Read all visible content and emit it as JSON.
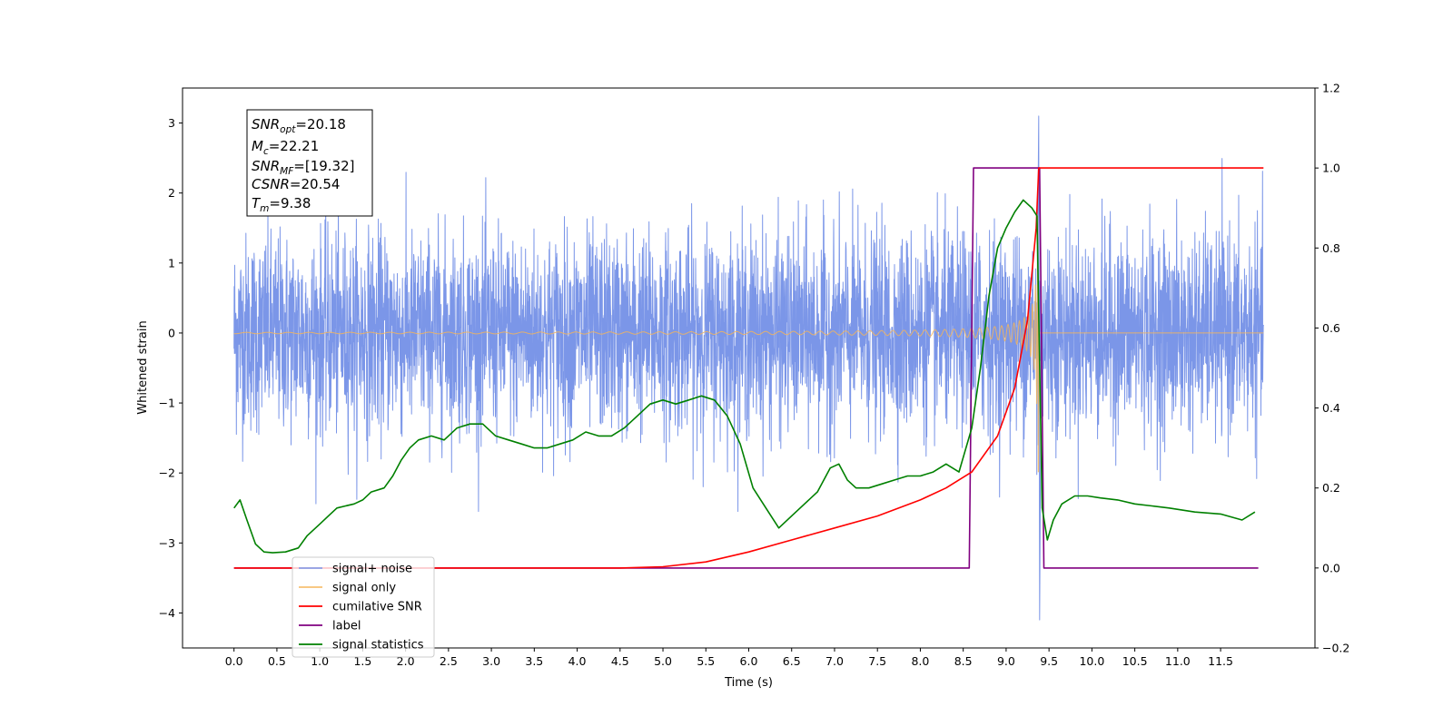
{
  "chart_data": {
    "type": "line",
    "xlabel": "Time (s)",
    "ylabel": "Whitened strain",
    "xlim": [
      -0.6,
      12.6
    ],
    "ylim": [
      -4.5,
      3.5
    ],
    "y2lim": [
      -0.2,
      1.2
    ],
    "x_ticks": [
      "0.0",
      "0.5",
      "1.0",
      "1.5",
      "2.0",
      "2.5",
      "3.0",
      "3.5",
      "4.0",
      "4.5",
      "5.0",
      "5.5",
      "6.0",
      "6.5",
      "7.0",
      "7.5",
      "8.0",
      "8.5",
      "9.0",
      "9.5",
      "10.0",
      "10.5",
      "11.0",
      "11.5"
    ],
    "y_ticks": [
      "3",
      "2",
      "1",
      "0",
      "−1",
      "−2",
      "−3",
      "−4"
    ],
    "y2_ticks": [
      "1.2",
      "1.0",
      "0.8",
      "0.6",
      "0.4",
      "0.2",
      "0.0",
      "−0.2"
    ],
    "grid": false,
    "legend_position": "lower-left",
    "annotation": [
      {
        "sym": "SNR",
        "sub": "opt",
        "value": "=20.18"
      },
      {
        "sym": "M",
        "sub": "c",
        "value": "=22.21"
      },
      {
        "sym": "SNR",
        "sub": "MF",
        "value": "=[19.32]"
      },
      {
        "sym": "CSNR",
        "sub": "",
        "value": "=20.54"
      },
      {
        "sym": "T",
        "sub": "m",
        "value": "=9.38"
      }
    ],
    "series": [
      {
        "name": "signal+ noise",
        "color": "#7b96e8",
        "axis": "left",
        "description": "whitened noise, sd ~0.7, amplitude roughly -2.5..2.7, spikes to 3.1 and -4.1 near t=9.38",
        "x_range": [
          0.0,
          12.0
        ],
        "peak_max": 3.1,
        "peak_min": -4.1
      },
      {
        "name": "signal only",
        "color": "#f5b55a",
        "axis": "left",
        "description": "chirp, frequency and amplitude increasing to merger at t=9.38, zero after",
        "merger_time": 9.38,
        "peak_amplitude": 3.0
      },
      {
        "name": "cumilative SNR",
        "color": "#ff0000",
        "axis": "right",
        "x": [
          0.0,
          4.0,
          4.5,
          5.0,
          5.5,
          6.0,
          6.5,
          7.0,
          7.5,
          8.0,
          8.3,
          8.6,
          8.9,
          9.1,
          9.25,
          9.35,
          9.38,
          12.0
        ],
        "values": [
          0.0,
          0.0,
          0.0,
          0.003,
          0.015,
          0.04,
          0.07,
          0.1,
          0.13,
          0.17,
          0.2,
          0.24,
          0.33,
          0.45,
          0.62,
          0.85,
          1.0,
          1.0
        ]
      },
      {
        "name": "label",
        "color": "#800080",
        "axis": "right",
        "x": [
          0.0,
          8.57,
          8.62,
          9.39,
          9.44,
          11.94
        ],
        "values": [
          0.0,
          0.0,
          1.0,
          1.0,
          0.0,
          0.0
        ]
      },
      {
        "name": "signal statistics",
        "color": "#008000",
        "axis": "right",
        "x": [
          0.0,
          0.07,
          0.15,
          0.25,
          0.35,
          0.45,
          0.6,
          0.75,
          0.85,
          1.0,
          1.1,
          1.2,
          1.3,
          1.4,
          1.5,
          1.6,
          1.75,
          1.85,
          1.95,
          2.05,
          2.15,
          2.3,
          2.45,
          2.6,
          2.75,
          2.9,
          3.05,
          3.2,
          3.35,
          3.5,
          3.65,
          3.8,
          3.95,
          4.1,
          4.25,
          4.4,
          4.55,
          4.7,
          4.85,
          5.0,
          5.15,
          5.3,
          5.45,
          5.6,
          5.75,
          5.9,
          6.05,
          6.2,
          6.35,
          6.5,
          6.65,
          6.8,
          6.95,
          7.05,
          7.15,
          7.25,
          7.4,
          7.55,
          7.7,
          7.85,
          8.0,
          8.15,
          8.3,
          8.45,
          8.6,
          8.7,
          8.8,
          8.9,
          9.0,
          9.1,
          9.2,
          9.3,
          9.36,
          9.42,
          9.48,
          9.55,
          9.65,
          9.8,
          9.95,
          10.1,
          10.3,
          10.5,
          10.7,
          10.9,
          11.2,
          11.5,
          11.75,
          11.9
        ],
        "values": [
          0.15,
          0.17,
          0.12,
          0.06,
          0.04,
          0.038,
          0.04,
          0.05,
          0.08,
          0.11,
          0.13,
          0.15,
          0.155,
          0.16,
          0.17,
          0.19,
          0.2,
          0.23,
          0.27,
          0.3,
          0.32,
          0.33,
          0.32,
          0.35,
          0.36,
          0.36,
          0.33,
          0.32,
          0.31,
          0.3,
          0.3,
          0.31,
          0.32,
          0.34,
          0.33,
          0.33,
          0.35,
          0.38,
          0.41,
          0.42,
          0.41,
          0.42,
          0.43,
          0.42,
          0.38,
          0.31,
          0.2,
          0.15,
          0.1,
          0.13,
          0.16,
          0.19,
          0.25,
          0.26,
          0.22,
          0.2,
          0.2,
          0.21,
          0.22,
          0.23,
          0.23,
          0.24,
          0.26,
          0.24,
          0.35,
          0.5,
          0.68,
          0.8,
          0.85,
          0.89,
          0.92,
          0.9,
          0.88,
          0.15,
          0.07,
          0.12,
          0.16,
          0.18,
          0.18,
          0.175,
          0.17,
          0.16,
          0.155,
          0.15,
          0.14,
          0.135,
          0.12,
          0.14
        ]
      }
    ]
  }
}
